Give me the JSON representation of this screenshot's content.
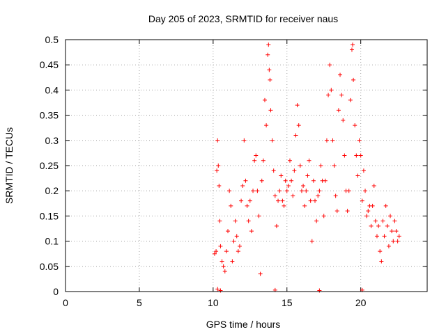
{
  "chart_data": {
    "type": "scatter",
    "title": "Day 205 of 2023, SRMTID for receiver naus",
    "xlabel": "GPS time / hours",
    "ylabel": "SRMTID / TECUs",
    "xlim": [
      0,
      24.5
    ],
    "ylim": [
      0,
      0.5
    ],
    "grid": true,
    "marker": "+",
    "marker_color": "#ff0000",
    "x_ticks": [
      0,
      5,
      10,
      15,
      20
    ],
    "x_tick_labels": [
      "0",
      "5",
      "10",
      "15",
      "20"
    ],
    "y_ticks": [
      0,
      0.05,
      0.1,
      0.15,
      0.2,
      0.25,
      0.3,
      0.35,
      0.4,
      0.45,
      0.5
    ],
    "y_tick_labels": [
      "0",
      "0.05",
      "0.1",
      "0.15",
      "0.2",
      "0.25",
      "0.3",
      "0.35",
      "0.4",
      "0.45",
      "0.5"
    ],
    "series": [
      {
        "name": "SRMTID",
        "points": [
          [
            10.1,
            0.075
          ],
          [
            10.2,
            0.08
          ],
          [
            10.25,
            0.24
          ],
          [
            10.3,
            0.3
          ],
          [
            10.35,
            0.25
          ],
          [
            10.4,
            0.21
          ],
          [
            10.45,
            0.14
          ],
          [
            10.5,
            0.09
          ],
          [
            10.6,
            0.06
          ],
          [
            10.7,
            0.05
          ],
          [
            10.8,
            0.04
          ],
          [
            10.9,
            0.08
          ],
          [
            11.0,
            0.12
          ],
          [
            11.1,
            0.2
          ],
          [
            11.2,
            0.17
          ],
          [
            11.3,
            0.06
          ],
          [
            11.4,
            0.1
          ],
          [
            11.5,
            0.14
          ],
          [
            11.6,
            0.11
          ],
          [
            11.7,
            0.08
          ],
          [
            11.8,
            0.09
          ],
          [
            11.9,
            0.18
          ],
          [
            12.0,
            0.21
          ],
          [
            12.1,
            0.3
          ],
          [
            12.2,
            0.22
          ],
          [
            12.3,
            0.17
          ],
          [
            12.4,
            0.14
          ],
          [
            12.5,
            0.18
          ],
          [
            12.6,
            0.12
          ],
          [
            12.7,
            0.2
          ],
          [
            12.8,
            0.26
          ],
          [
            12.9,
            0.27
          ],
          [
            13.0,
            0.2
          ],
          [
            13.1,
            0.15
          ],
          [
            13.2,
            0.035
          ],
          [
            13.3,
            0.22
          ],
          [
            13.4,
            0.26
          ],
          [
            13.5,
            0.38
          ],
          [
            13.6,
            0.33
          ],
          [
            13.7,
            0.47
          ],
          [
            13.75,
            0.49
          ],
          [
            13.8,
            0.44
          ],
          [
            13.85,
            0.42
          ],
          [
            13.9,
            0.36
          ],
          [
            14.0,
            0.3
          ],
          [
            14.1,
            0.24
          ],
          [
            14.2,
            0.19
          ],
          [
            14.3,
            0.13
          ],
          [
            14.4,
            0.18
          ],
          [
            14.5,
            0.2
          ],
          [
            14.6,
            0.23
          ],
          [
            14.7,
            0.18
          ],
          [
            14.8,
            0.17
          ],
          [
            14.9,
            0.22
          ],
          [
            15.0,
            0.2
          ],
          [
            15.1,
            0.21
          ],
          [
            15.2,
            0.26
          ],
          [
            15.3,
            0.22
          ],
          [
            15.4,
            0.19
          ],
          [
            15.5,
            0.24
          ],
          [
            15.6,
            0.31
          ],
          [
            15.7,
            0.37
          ],
          [
            15.8,
            0.33
          ],
          [
            15.9,
            0.25
          ],
          [
            16.0,
            0.2
          ],
          [
            16.1,
            0.21
          ],
          [
            16.2,
            0.17
          ],
          [
            16.3,
            0.2
          ],
          [
            16.4,
            0.23
          ],
          [
            16.5,
            0.26
          ],
          [
            16.6,
            0.18
          ],
          [
            16.7,
            0.1
          ],
          [
            16.8,
            0.22
          ],
          [
            16.9,
            0.18
          ],
          [
            17.0,
            0.14
          ],
          [
            17.1,
            0.19
          ],
          [
            17.2,
            0.2
          ],
          [
            17.3,
            0.25
          ],
          [
            17.4,
            0.22
          ],
          [
            17.5,
            0.15
          ],
          [
            17.6,
            0.22
          ],
          [
            17.7,
            0.3
          ],
          [
            17.8,
            0.39
          ],
          [
            17.9,
            0.45
          ],
          [
            18.0,
            0.4
          ],
          [
            18.1,
            0.3
          ],
          [
            18.2,
            0.25
          ],
          [
            18.3,
            0.19
          ],
          [
            18.4,
            0.16
          ],
          [
            18.5,
            0.36
          ],
          [
            18.6,
            0.43
          ],
          [
            18.7,
            0.39
          ],
          [
            18.8,
            0.34
          ],
          [
            18.9,
            0.27
          ],
          [
            19.0,
            0.2
          ],
          [
            19.1,
            0.16
          ],
          [
            19.2,
            0.2
          ],
          [
            19.3,
            0.38
          ],
          [
            19.4,
            0.48
          ],
          [
            19.45,
            0.49
          ],
          [
            19.5,
            0.42
          ],
          [
            19.6,
            0.33
          ],
          [
            19.7,
            0.27
          ],
          [
            19.8,
            0.23
          ],
          [
            19.9,
            0.3
          ],
          [
            20.0,
            0.27
          ],
          [
            20.1,
            0.18
          ],
          [
            20.2,
            0.24
          ],
          [
            20.3,
            0.2
          ],
          [
            20.4,
            0.15
          ],
          [
            20.5,
            0.16
          ],
          [
            20.6,
            0.17
          ],
          [
            20.7,
            0.13
          ],
          [
            20.8,
            0.17
          ],
          [
            20.9,
            0.21
          ],
          [
            21.0,
            0.14
          ],
          [
            21.1,
            0.11
          ],
          [
            21.2,
            0.13
          ],
          [
            21.3,
            0.08
          ],
          [
            21.4,
            0.06
          ],
          [
            21.5,
            0.14
          ],
          [
            21.6,
            0.11
          ],
          [
            21.7,
            0.17
          ],
          [
            21.8,
            0.13
          ],
          [
            21.9,
            0.09
          ],
          [
            22.0,
            0.15
          ],
          [
            22.1,
            0.12
          ],
          [
            22.2,
            0.1
          ],
          [
            22.3,
            0.14
          ],
          [
            22.4,
            0.12
          ],
          [
            22.5,
            0.1
          ],
          [
            22.6,
            0.11
          ],
          [
            10.3,
            0.005
          ],
          [
            10.5,
            0.002
          ],
          [
            14.2,
            0.003
          ],
          [
            17.2,
            0.002
          ],
          [
            20.1,
            0.003
          ]
        ]
      }
    ]
  }
}
